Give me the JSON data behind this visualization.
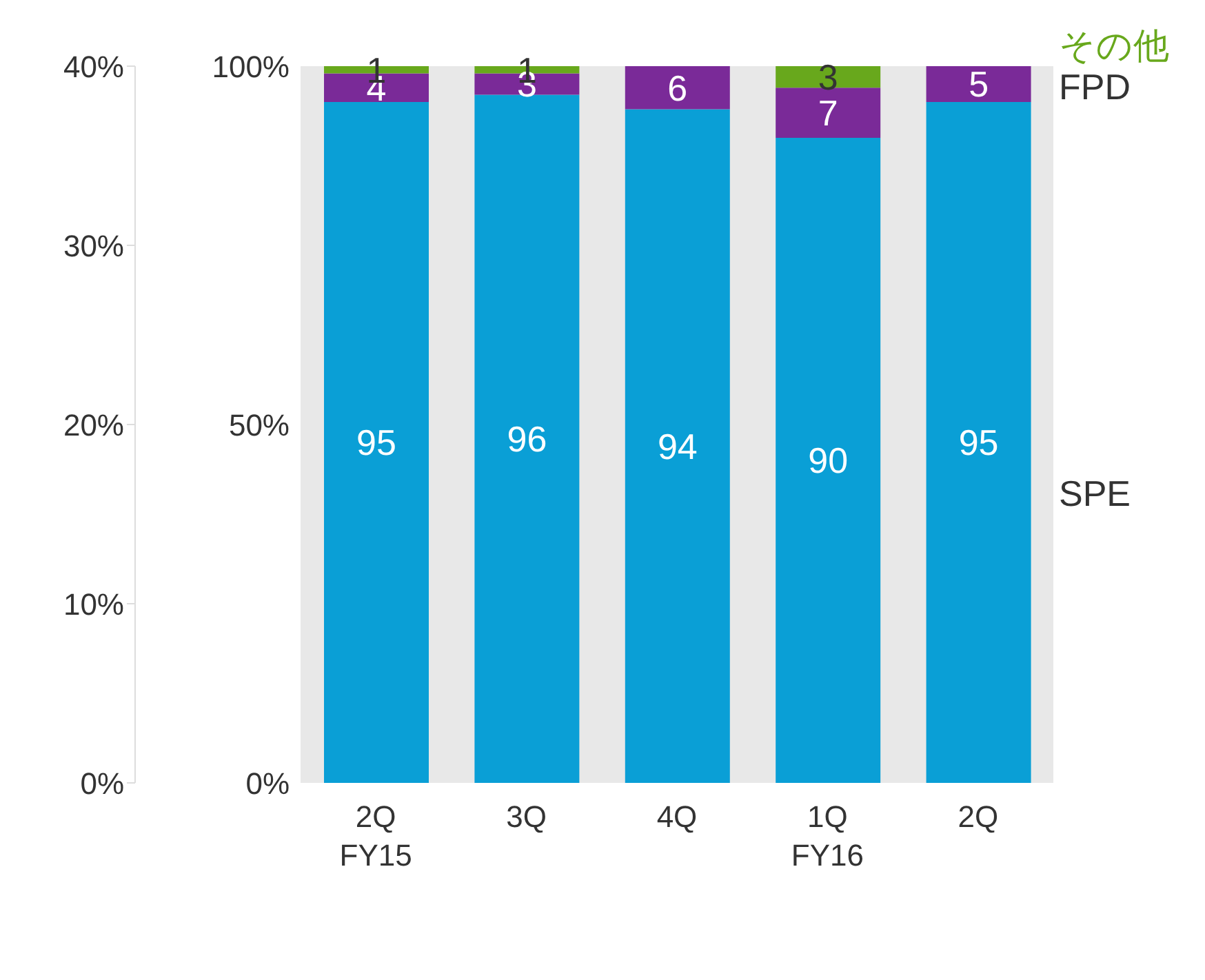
{
  "chart_data": {
    "type": "bar",
    "stacked": true,
    "categories": [
      "2Q\nFY15",
      "3Q",
      "4Q",
      "1Q\nFY16",
      "2Q"
    ],
    "series": [
      {
        "name": "SPE",
        "color": "#0a9fd6",
        "values": [
          95,
          96,
          94,
          90,
          95
        ]
      },
      {
        "name": "FPD",
        "color": "#7a2a98",
        "values": [
          4,
          3,
          6,
          7,
          5
        ]
      },
      {
        "name": "その他",
        "color": "#68a81c",
        "values": [
          1,
          1,
          null,
          3,
          null
        ]
      }
    ],
    "ylim": [
      0,
      100
    ],
    "yticks": [
      {
        "value": 0,
        "label": "0%"
      },
      {
        "value": 50,
        "label": "50%"
      },
      {
        "value": 100,
        "label": "100%"
      }
    ],
    "y2lim": [
      0,
      40
    ],
    "y2ticks": [
      {
        "value": 0,
        "label": "0%"
      },
      {
        "value": 10,
        "label": "10%"
      },
      {
        "value": 20,
        "label": "20%"
      },
      {
        "value": 30,
        "label": "30%"
      },
      {
        "value": 40,
        "label": "40%"
      }
    ],
    "data_labels": true,
    "grid": false
  }
}
